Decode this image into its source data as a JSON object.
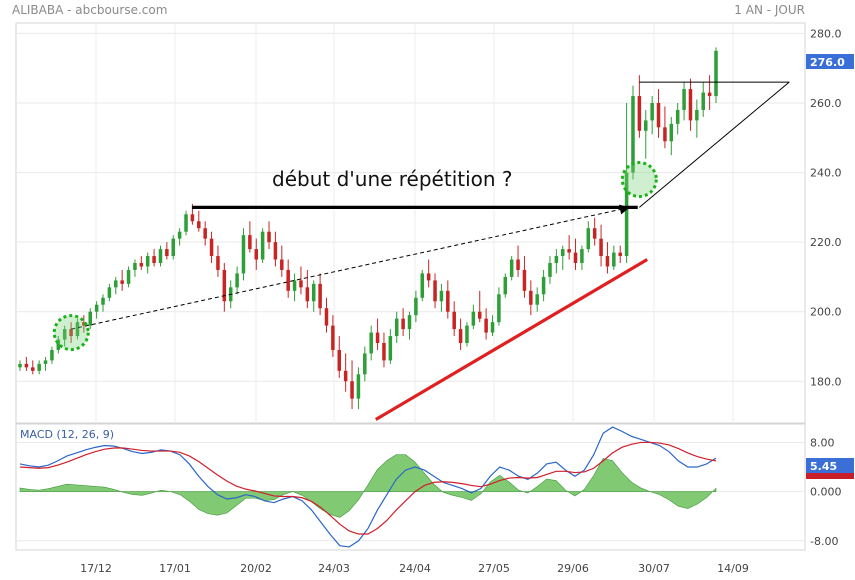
{
  "header": {
    "title": "ALIBABA - abcbourse.com",
    "period": "1 AN - JOUR"
  },
  "chart_data": [
    {
      "type": "candlestick",
      "panel": "price",
      "ylim": [
        168,
        283
      ],
      "yticks": [
        180,
        200,
        220,
        240,
        260,
        280
      ],
      "ytick_labels": [
        "180.0",
        "200.0",
        "220.0",
        "240.0",
        "260.0",
        "280.0"
      ],
      "last_price": 276.0,
      "last_price_label": "276.0",
      "xtick_labels": [
        "17/12",
        "17/01",
        "20/02",
        "24/03",
        "24/04",
        "27/05",
        "29/06",
        "30/07",
        "14/09"
      ],
      "annotation": "début d'une répétition ?",
      "anchor_points": [
        {
          "x": 0,
          "y": 190
        },
        {
          "x": 30,
          "y": 182
        }
      ],
      "trend_lines": [
        {
          "name": "resistance",
          "color": "#000000",
          "from": [
            0.223,
            230
          ],
          "to": [
            0.788,
            230
          ]
        },
        {
          "name": "support",
          "color": "#e02020",
          "from": [
            0.456,
            169
          ],
          "to": [
            0.8,
            215
          ]
        },
        {
          "name": "projection",
          "color": "#000000",
          "dashed": true,
          "from": [
            0.07,
            195
          ],
          "to": [
            0.778,
            230
          ]
        },
        {
          "name": "triangle-top",
          "color": "#000000",
          "from": [
            0.79,
            266
          ],
          "to": [
            0.98,
            266
          ]
        },
        {
          "name": "triangle-bottom",
          "color": "#000000",
          "from": [
            0.79,
            230
          ],
          "to": [
            0.98,
            266
          ]
        }
      ],
      "highlights": [
        {
          "name": "start-circle",
          "x": 0.07,
          "y": 194
        },
        {
          "name": "end-circle",
          "x": 0.79,
          "y": 238
        }
      ],
      "candles": [
        [
          184,
          186,
          183,
          185
        ],
        [
          185,
          187,
          183,
          184
        ],
        [
          184,
          186,
          182,
          183
        ],
        [
          183,
          186,
          182,
          185
        ],
        [
          185,
          187,
          183,
          186
        ],
        [
          186,
          190,
          185,
          189
        ],
        [
          189,
          193,
          188,
          192
        ],
        [
          192,
          196,
          190,
          195
        ],
        [
          195,
          197,
          191,
          193
        ],
        [
          193,
          198,
          192,
          197
        ],
        [
          197,
          199,
          194,
          196
        ],
        [
          196,
          201,
          195,
          200
        ],
        [
          200,
          203,
          198,
          202
        ],
        [
          202,
          205,
          200,
          204
        ],
        [
          204,
          208,
          203,
          207
        ],
        [
          207,
          210,
          205,
          209
        ],
        [
          209,
          212,
          206,
          208
        ],
        [
          208,
          213,
          207,
          212
        ],
        [
          212,
          215,
          210,
          214
        ],
        [
          214,
          216,
          212,
          213
        ],
        [
          213,
          217,
          211,
          216
        ],
        [
          216,
          218,
          213,
          214
        ],
        [
          214,
          219,
          213,
          218
        ],
        [
          218,
          220,
          215,
          216
        ],
        [
          216,
          222,
          215,
          221
        ],
        [
          221,
          224,
          219,
          223
        ],
        [
          223,
          229,
          222,
          228
        ],
        [
          228,
          231,
          225,
          226
        ],
        [
          226,
          229,
          223,
          224
        ],
        [
          224,
          226,
          219,
          221
        ],
        [
          221,
          223,
          214,
          216
        ],
        [
          216,
          219,
          210,
          212
        ],
        [
          212,
          214,
          200,
          203
        ],
        [
          203,
          209,
          201,
          207
        ],
        [
          207,
          213,
          205,
          211
        ],
        [
          211,
          224,
          209,
          222
        ],
        [
          222,
          226,
          217,
          218
        ],
        [
          218,
          221,
          212,
          215
        ],
        [
          215,
          224,
          214,
          223
        ],
        [
          223,
          226,
          218,
          220
        ],
        [
          220,
          223,
          213,
          215
        ],
        [
          215,
          219,
          210,
          212
        ],
        [
          212,
          215,
          204,
          206
        ],
        [
          206,
          211,
          203,
          209
        ],
        [
          209,
          213,
          205,
          207
        ],
        [
          207,
          212,
          201,
          203
        ],
        [
          203,
          209,
          200,
          208
        ],
        [
          208,
          211,
          199,
          201
        ],
        [
          201,
          204,
          194,
          196
        ],
        [
          196,
          199,
          187,
          189
        ],
        [
          189,
          193,
          181,
          183
        ],
        [
          183,
          188,
          177,
          180
        ],
        [
          180,
          186,
          172,
          175
        ],
        [
          175,
          184,
          172,
          182
        ],
        [
          182,
          190,
          180,
          188
        ],
        [
          188,
          196,
          186,
          194
        ],
        [
          194,
          198,
          189,
          191
        ],
        [
          191,
          194,
          184,
          186
        ],
        [
          186,
          195,
          185,
          193
        ],
        [
          193,
          200,
          191,
          198
        ],
        [
          198,
          201,
          193,
          195
        ],
        [
          195,
          200,
          192,
          199
        ],
        [
          199,
          206,
          197,
          204
        ],
        [
          204,
          212,
          203,
          211
        ],
        [
          211,
          215,
          207,
          209
        ],
        [
          209,
          211,
          201,
          203
        ],
        [
          203,
          208,
          200,
          206
        ],
        [
          206,
          209,
          198,
          200
        ],
        [
          200,
          203,
          193,
          195
        ],
        [
          195,
          198,
          189,
          191
        ],
        [
          191,
          197,
          190,
          196
        ],
        [
          196,
          202,
          195,
          200
        ],
        [
          200,
          206,
          197,
          198
        ],
        [
          198,
          201,
          192,
          194
        ],
        [
          194,
          199,
          193,
          197
        ],
        [
          197,
          207,
          196,
          205
        ],
        [
          205,
          211,
          204,
          210
        ],
        [
          210,
          216,
          209,
          215
        ],
        [
          215,
          219,
          210,
          212
        ],
        [
          212,
          216,
          204,
          206
        ],
        [
          206,
          209,
          199,
          202
        ],
        [
          202,
          207,
          200,
          205
        ],
        [
          205,
          212,
          203,
          210
        ],
        [
          210,
          216,
          208,
          214
        ],
        [
          214,
          218,
          211,
          216
        ],
        [
          216,
          219,
          212,
          218
        ],
        [
          218,
          222,
          215,
          217
        ],
        [
          217,
          221,
          212,
          214
        ],
        [
          214,
          219,
          212,
          218
        ],
        [
          218,
          226,
          217,
          224
        ],
        [
          224,
          227,
          219,
          221
        ],
        [
          221,
          225,
          213,
          216
        ],
        [
          216,
          220,
          211,
          213
        ],
        [
          213,
          219,
          212,
          217
        ],
        [
          217,
          219,
          214,
          216
        ],
        [
          216,
          260,
          214,
          240
        ],
        [
          240,
          265,
          238,
          262
        ],
        [
          262,
          268,
          250,
          252
        ],
        [
          252,
          258,
          244,
          255
        ],
        [
          255,
          262,
          251,
          260
        ],
        [
          260,
          264,
          250,
          253
        ],
        [
          253,
          259,
          247,
          249
        ],
        [
          249,
          256,
          245,
          254
        ],
        [
          254,
          260,
          251,
          258
        ],
        [
          258,
          266,
          255,
          264
        ],
        [
          264,
          267,
          252,
          255
        ],
        [
          255,
          261,
          250,
          258
        ],
        [
          258,
          266,
          256,
          263
        ],
        [
          263,
          268,
          258,
          262
        ],
        [
          262,
          276,
          260,
          275
        ]
      ]
    },
    {
      "type": "line",
      "panel": "macd",
      "title": "MACD (12, 26, 9)",
      "ylim": [
        -9.5,
        11
      ],
      "yticks": [
        -8,
        0,
        8
      ],
      "ytick_labels": [
        "-8.00",
        "0.000",
        "8.00"
      ],
      "last_value_label": "5.45",
      "series": [
        {
          "color": "#2a66c9",
          "values": [
            4.5,
            4.2,
            4.0,
            4.3,
            5.0,
            5.8,
            6.3,
            6.8,
            7.2,
            7.5,
            7.4,
            7.0,
            6.5,
            6.2,
            6.4,
            6.8,
            6.6,
            6.0,
            4.5,
            2.5,
            0.8,
            -0.5,
            -1.2,
            -1.0,
            -0.5,
            -0.8,
            -1.5,
            -1.8,
            -1.2,
            -0.8,
            -1.5,
            -3.0,
            -5.0,
            -7.0,
            -8.8,
            -9.0,
            -8.0,
            -6.0,
            -3.0,
            -0.5,
            2.0,
            3.5,
            4.0,
            3.5,
            2.5,
            1.5,
            1.0,
            0.5,
            -0.2,
            0.5,
            2.5,
            4.0,
            3.5,
            2.5,
            2.0,
            3.0,
            4.5,
            4.8,
            3.5,
            2.5,
            3.5,
            6.0,
            9.5,
            10.5,
            9.8,
            9.0,
            8.5,
            8.0,
            7.5,
            6.5,
            5.0,
            4.0,
            4.0,
            4.5,
            5.45
          ]
        },
        {
          "color": "#d01f2a",
          "values": [
            4.0,
            3.9,
            3.8,
            3.9,
            4.3,
            4.8,
            5.4,
            6.0,
            6.5,
            6.9,
            7.1,
            7.1,
            6.9,
            6.7,
            6.6,
            6.6,
            6.6,
            6.4,
            5.8,
            4.9,
            3.8,
            2.7,
            1.7,
            0.9,
            0.4,
            0.1,
            -0.3,
            -0.7,
            -0.8,
            -0.8,
            -1.0,
            -1.6,
            -2.6,
            -3.9,
            -5.3,
            -6.4,
            -6.9,
            -6.9,
            -6.0,
            -4.7,
            -3.0,
            -1.5,
            0.0,
            1.0,
            1.5,
            1.6,
            1.5,
            1.3,
            1.0,
            0.8,
            1.2,
            1.8,
            2.2,
            2.3,
            2.2,
            2.3,
            2.8,
            3.3,
            3.3,
            3.1,
            3.2,
            3.8,
            5.0,
            6.3,
            7.2,
            7.7,
            8.0,
            8.0,
            7.9,
            7.6,
            7.0,
            6.3,
            5.7,
            5.3,
            5.0
          ]
        }
      ]
    }
  ]
}
